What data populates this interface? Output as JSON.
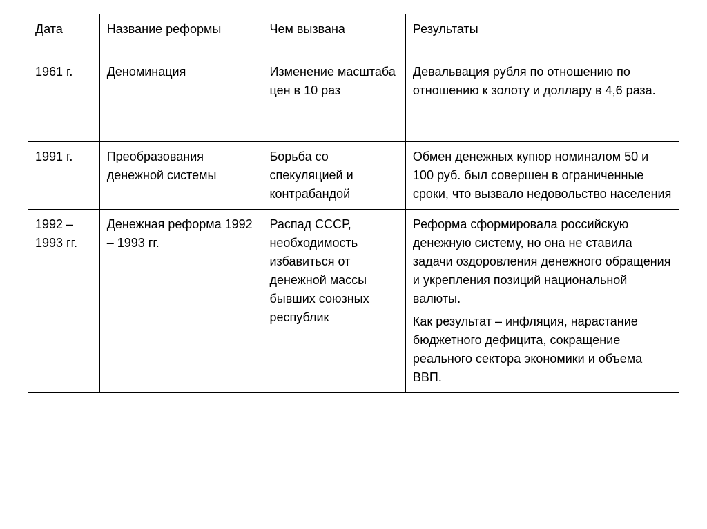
{
  "table": {
    "columns": [
      "Дата",
      "Название реформы",
      "Чем вызвана",
      "Результаты"
    ],
    "column_widths_pct": [
      11,
      25,
      22,
      42
    ],
    "border_color": "#000000",
    "border_width": 1.5,
    "background_color": "#ffffff",
    "font_family": "Arial",
    "font_size_pt": 14,
    "text_color": "#000000",
    "rows": [
      {
        "date": "1961 г.",
        "name": "Деноминация",
        "cause": "Изменение масштаба цен в 10 раз",
        "result": [
          "Девальвация рубля по отношению по отношению к золоту и доллару в 4,6 раза."
        ]
      },
      {
        "date": "1991 г.",
        "name": "Преобразования денежной системы",
        "cause": "Борьба со спекуляцией и контрабандой",
        "result": [
          "Обмен денежных купюр номиналом 50 и 100 руб. был совершен в ограниченные сроки, что вызвало недовольство населения"
        ]
      },
      {
        "date": "1992 – 1993 гг.",
        "name": "Денежная реформа 1992 – 1993 гг.",
        "cause": "Распад СССР, необходимость избавиться от денежной массы бывших союзных республик",
        "result": [
          "Реформа сформировала российскую денежную систему, но она не ставила задачи оздоровления денежного обращения и укрепления позиций национальной валюты.",
          "Как результат – инфляция, нарастание бюджетного дефицита, сокращение реального сектора экономики и объема ВВП."
        ]
      }
    ]
  }
}
